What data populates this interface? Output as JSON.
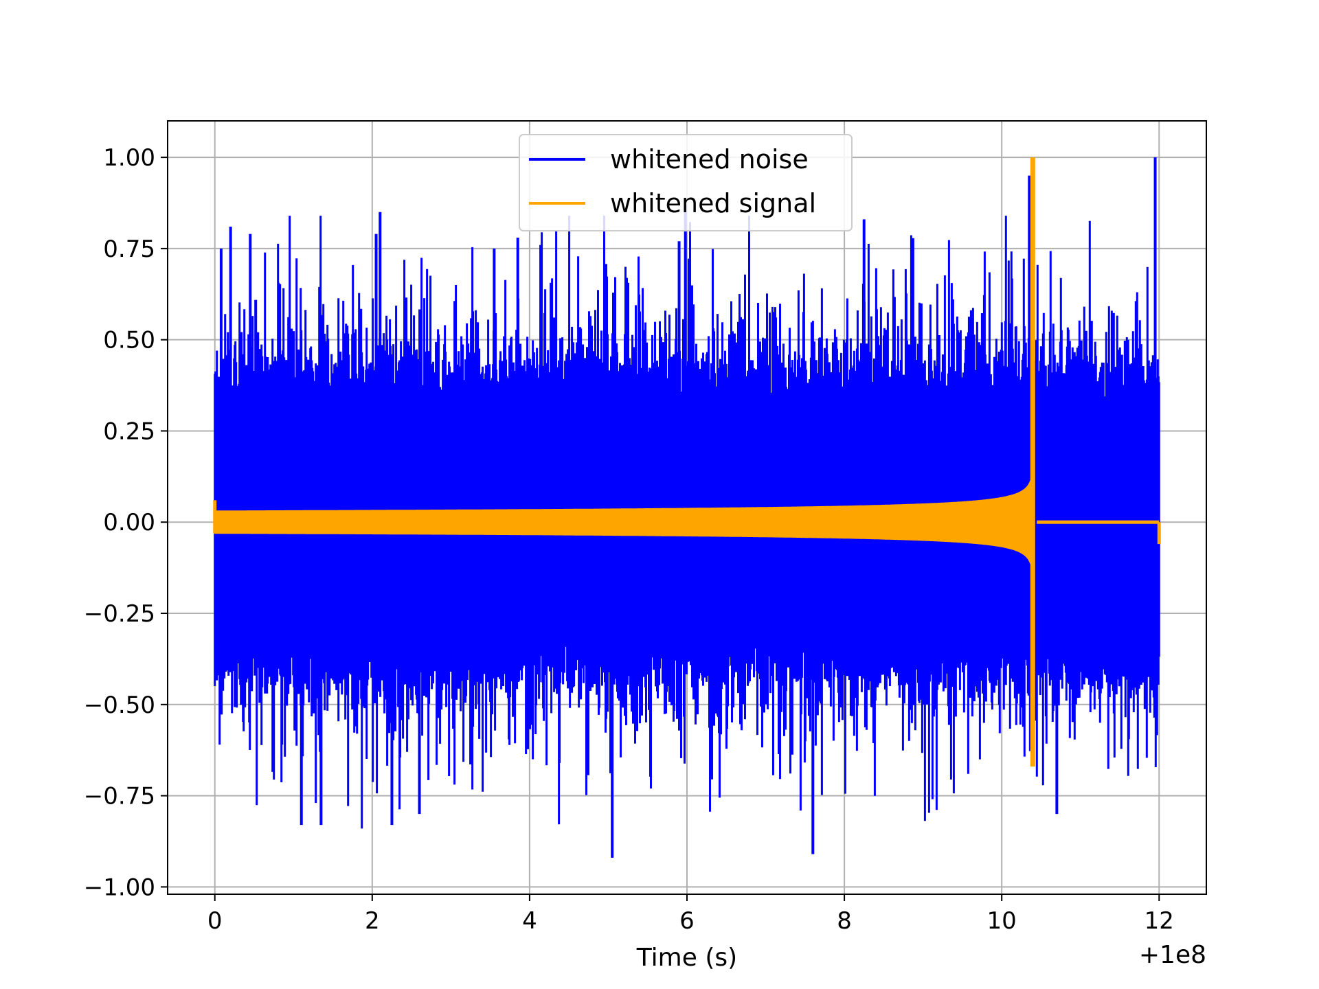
{
  "chart_data": {
    "type": "line",
    "title": "",
    "xlabel": "Time (s)",
    "ylabel": "",
    "x_offset_label": "+1e8",
    "xlim": [
      -0.6,
      12.6
    ],
    "ylim": [
      -1.02,
      1.1
    ],
    "grid": true,
    "legend_position": "top-center",
    "x_ticks": [
      0,
      2,
      4,
      6,
      8,
      10,
      12
    ],
    "x_tick_labels": [
      "0",
      "2",
      "4",
      "6",
      "8",
      "10",
      "12"
    ],
    "y_ticks": [
      1.0,
      0.75,
      0.5,
      0.25,
      0.0,
      -0.25,
      -0.5,
      -0.75,
      -1.0
    ],
    "y_tick_labels": [
      "1.00",
      "0.75",
      "0.50",
      "0.25",
      "0.00",
      "−0.25",
      "−0.50",
      "−0.75",
      "−1.00"
    ],
    "series": [
      {
        "name": "whitened noise",
        "color": "#0000ff",
        "x_range": [
          0,
          12.0
        ],
        "typical_envelope": [
          -0.45,
          0.45
        ],
        "max": 1.0,
        "min": -0.92,
        "notable_peaks": [
          {
            "x": 0.08,
            "y": 0.75
          },
          {
            "x": 0.2,
            "y": 0.81
          },
          {
            "x": 0.45,
            "y": 0.79
          },
          {
            "x": 1.1,
            "y": -0.83
          },
          {
            "x": 1.35,
            "y": -0.83
          },
          {
            "x": 2.05,
            "y": 0.79
          },
          {
            "x": 2.1,
            "y": 0.85
          },
          {
            "x": 2.25,
            "y": -0.83
          },
          {
            "x": 2.6,
            "y": -0.8
          },
          {
            "x": 3.55,
            "y": 0.75
          },
          {
            "x": 3.85,
            "y": 0.78
          },
          {
            "x": 5.05,
            "y": -0.92
          },
          {
            "x": 5.9,
            "y": 0.77
          },
          {
            "x": 5.98,
            "y": 0.87
          },
          {
            "x": 7.6,
            "y": -0.91
          },
          {
            "x": 8.25,
            "y": 0.83
          },
          {
            "x": 10.35,
            "y": 0.95
          },
          {
            "x": 10.7,
            "y": -0.8
          },
          {
            "x": 11.95,
            "y": 1.0
          }
        ]
      },
      {
        "name": "whitened signal",
        "color": "#ffa500",
        "x_range": [
          0,
          12.0
        ],
        "start_amplitude": 0.03,
        "peak_time": 10.42,
        "peak_max": 1.0,
        "peak_min": -0.67,
        "after_merger_value": 0.0
      }
    ]
  }
}
